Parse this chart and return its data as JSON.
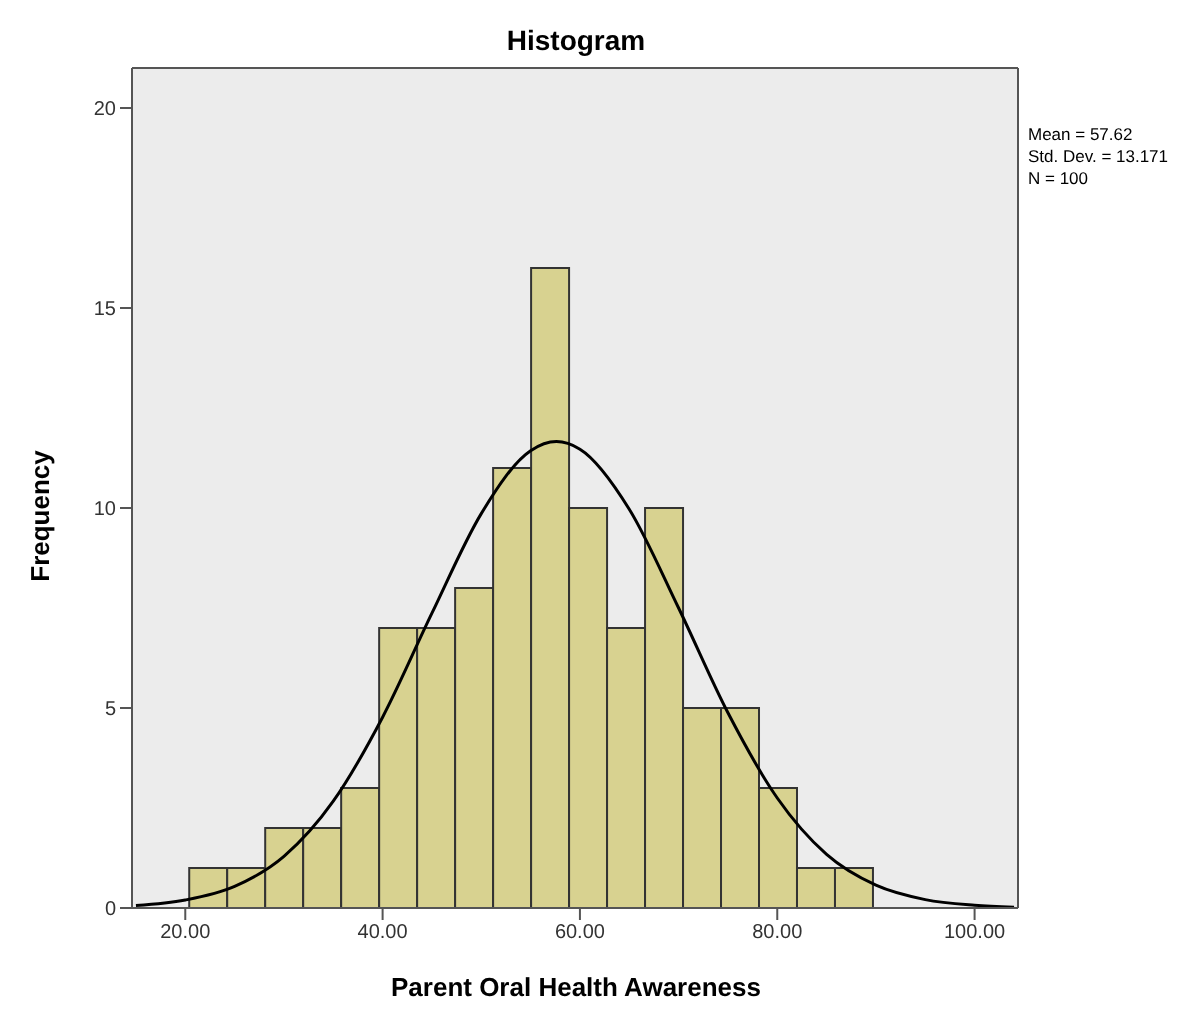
{
  "chart_data": {
    "type": "histogram",
    "title": "Histogram",
    "xlabel": "Parent Oral Health Awareness",
    "ylabel": "Frequency",
    "bins": [
      20.4,
      24.25,
      28.1,
      31.95,
      35.8,
      39.65,
      43.5,
      47.35,
      51.2,
      55.05,
      58.9,
      62.75,
      66.6,
      70.45,
      74.3,
      78.15,
      82.0,
      85.85,
      89.7
    ],
    "values": [
      1,
      1,
      2,
      2,
      3,
      7,
      7,
      8,
      11,
      16,
      10,
      7,
      10,
      5,
      5,
      3,
      1,
      1
    ],
    "color": "#d8d290",
    "series": [
      {
        "type": "line",
        "color": "#000000",
        "x": [
          15,
          20,
          25,
          30,
          35,
          40,
          45,
          50,
          55,
          57.62,
          60,
          65,
          70,
          75,
          80,
          85,
          90,
          95,
          100,
          104
        ],
        "values": [
          0.06,
          0.2,
          0.54,
          1.29,
          2.67,
          4.77,
          7.37,
          9.86,
          11.43,
          11.66,
          11.47,
          9.97,
          7.5,
          4.88,
          2.75,
          1.34,
          0.57,
          0.21,
          0.07,
          0.02
        ]
      }
    ],
    "xlim": [
      14.6,
      104.4
    ],
    "ylim": [
      0,
      21
    ],
    "xticks": [
      {
        "value": 20,
        "label": "20.00"
      },
      {
        "value": 40,
        "label": "40.00"
      },
      {
        "value": 60,
        "label": "60.00"
      },
      {
        "value": 80,
        "label": "80.00"
      },
      {
        "value": 100,
        "label": "100.00"
      }
    ],
    "yticks": [
      0,
      5,
      10,
      15,
      20
    ],
    "annotations": [
      "Mean = 57.62",
      "Std. Dev. = 13.171",
      "N = 100"
    ]
  }
}
